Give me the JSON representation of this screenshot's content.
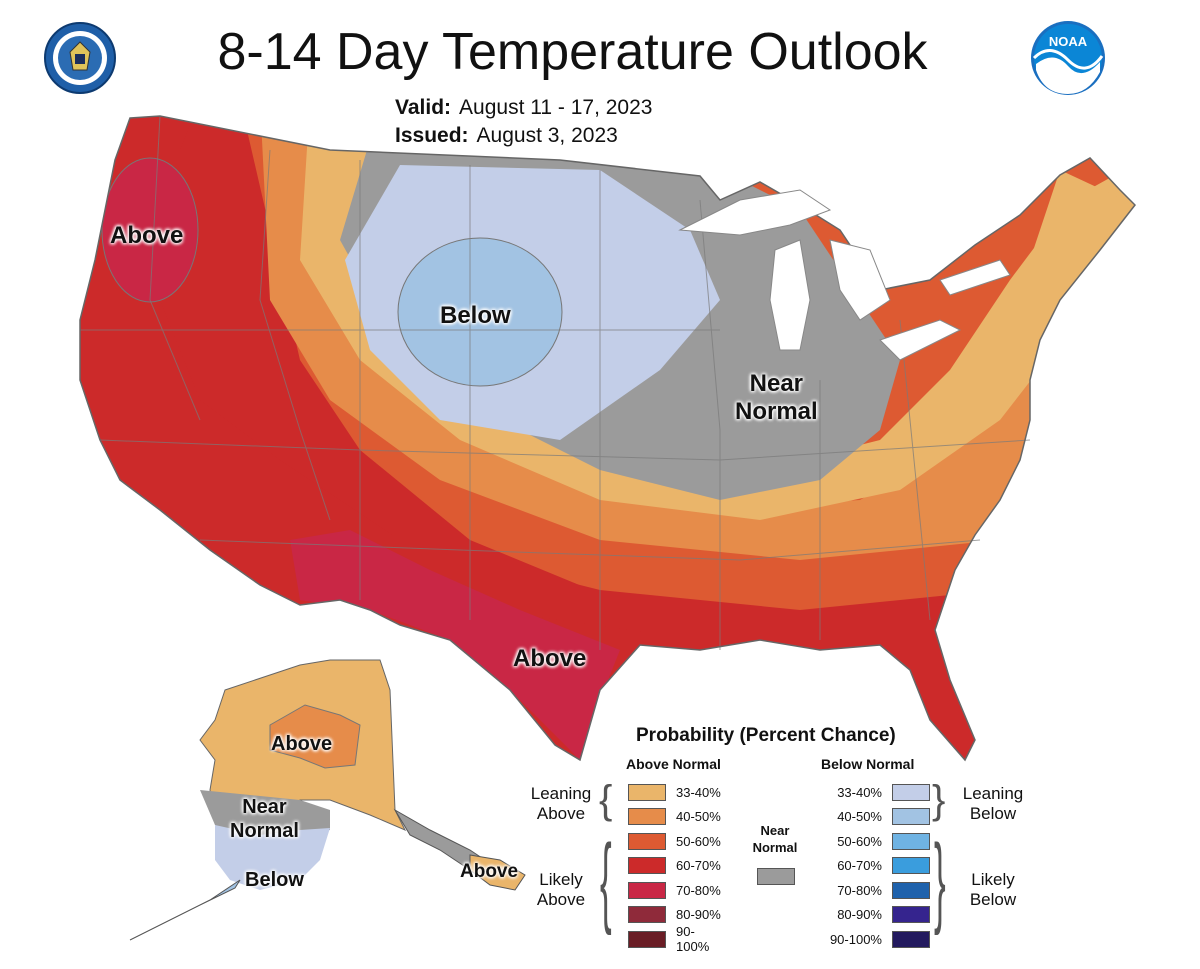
{
  "title": "8-14 Day Temperature Outlook",
  "valid": {
    "label": "Valid:",
    "value": "August 11 - 17, 2023"
  },
  "issued": {
    "label": "Issued:",
    "value": "August 3, 2023"
  },
  "logos": {
    "left": "department-of-commerce-seal",
    "right": "noaa-logo",
    "noaa_text": "NOAA"
  },
  "map_labels": {
    "above_nw": "Above",
    "below_north": "Below",
    "near_normal_1": "Near",
    "near_normal_2": "Normal",
    "above_south": "Above",
    "alaska_above": "Above",
    "alaska_near_1": "Near",
    "alaska_near_2": "Normal",
    "alaska_below": "Below",
    "alaska_panhandle_above": "Above"
  },
  "legend": {
    "title": "Probability (Percent Chance)",
    "above_header": "Above Normal",
    "below_header": "Below Normal",
    "near_header_1": "Near",
    "near_header_2": "Normal",
    "leaning_above_1": "Leaning",
    "leaning_above_2": "Above",
    "likely_above_1": "Likely",
    "likely_above_2": "Above",
    "leaning_below_1": "Leaning",
    "leaning_below_2": "Below",
    "likely_below_1": "Likely",
    "likely_below_2": "Below",
    "above": [
      {
        "range": "33-40%",
        "color": "#eab56a"
      },
      {
        "range": "40-50%",
        "color": "#e68c4a"
      },
      {
        "range": "50-60%",
        "color": "#dd5a32"
      },
      {
        "range": "60-70%",
        "color": "#cc2a2a"
      },
      {
        "range": "70-80%",
        "color": "#c92745"
      },
      {
        "range": "80-90%",
        "color": "#8f2a3a"
      },
      {
        "range": "90-100%",
        "color": "#6a1d25"
      }
    ],
    "below": [
      {
        "range": "33-40%",
        "color": "#c3cee8"
      },
      {
        "range": "40-50%",
        "color": "#a2c3e3"
      },
      {
        "range": "50-60%",
        "color": "#6fb3e3"
      },
      {
        "range": "60-70%",
        "color": "#3a9ddd"
      },
      {
        "range": "70-80%",
        "color": "#1f62ac"
      },
      {
        "range": "80-90%",
        "color": "#35248e"
      },
      {
        "range": "90-100%",
        "color": "#231a5f"
      }
    ],
    "near_color": "#9b9b9b"
  }
}
